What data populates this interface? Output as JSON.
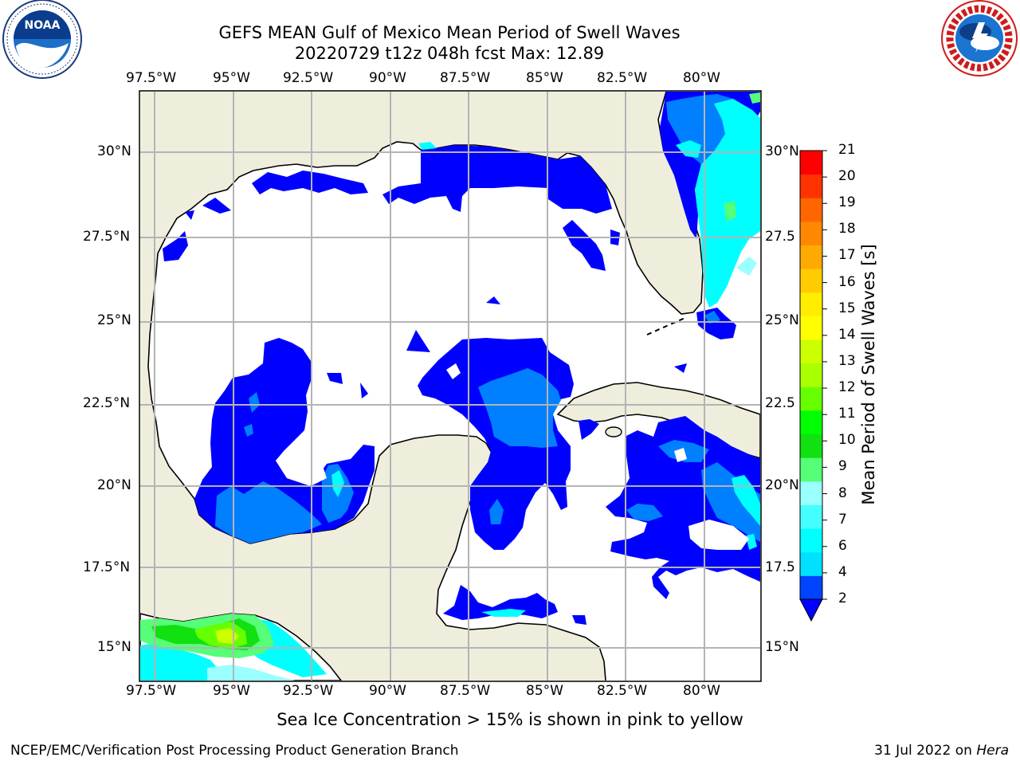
{
  "header": {
    "title_line1": "GEFS MEAN Gulf of Mexico Mean Period of Swell Waves",
    "title_line2": "20220729 t12z 048h fcst   Max: 12.89"
  },
  "logos": {
    "left": {
      "name": "NOAA",
      "ring_text": "NATIONAL OCEANIC AND ATMOSPHERIC ADMINISTRATION · U.S. DEPARTMENT OF COMMERCE"
    },
    "right": {
      "name": "National Weather Service",
      "ring_text": "NATIONAL WEATHER SERVICE"
    }
  },
  "map": {
    "lon_ticks": [
      "97.5°W",
      "95°W",
      "92.5°W",
      "90°W",
      "87.5°W",
      "85°W",
      "82.5°W",
      "80°W"
    ],
    "lat_ticks_left": [
      "30°N",
      "27.5°N",
      "25°N",
      "22.5°N",
      "20°N",
      "17.5°N",
      "15°N"
    ],
    "lat_ticks_right": [
      "30°N",
      "27.5",
      "25°N",
      "22.5",
      "20°N",
      "17.5",
      "15°N"
    ],
    "land_color": "#efeedd",
    "ocean_color": "#ffffff",
    "grid_color": "#b4b4b4"
  },
  "colorbar": {
    "label": "Mean Period of Swell Waves [s]",
    "ticks": [
      "21",
      "20",
      "19",
      "18",
      "17",
      "16",
      "15",
      "14",
      "13",
      "12",
      "11",
      "10",
      "9",
      "8",
      "7",
      "6",
      "4",
      "2"
    ],
    "colors": [
      "#0044ff",
      "#00e0ff",
      "#00ffff",
      "#44ffff",
      "#99ffff",
      "#55ff77",
      "#11e011",
      "#00ff00",
      "#66ff00",
      "#aaff00",
      "#ccff00",
      "#ffff00",
      "#ffee00",
      "#ffcc00",
      "#ffaa00",
      "#ff8800",
      "#ff6600",
      "#ff3300",
      "#ff0000"
    ],
    "extend_color": "#0000ff"
  },
  "note": "Sea Ice Concentration > 15% is shown in pink to yellow",
  "footer": {
    "left": "NCEP/EMC/Verification Post Processing Product Generation Branch",
    "right_date": "31 Jul 2022 on ",
    "right_host": "Hera"
  }
}
